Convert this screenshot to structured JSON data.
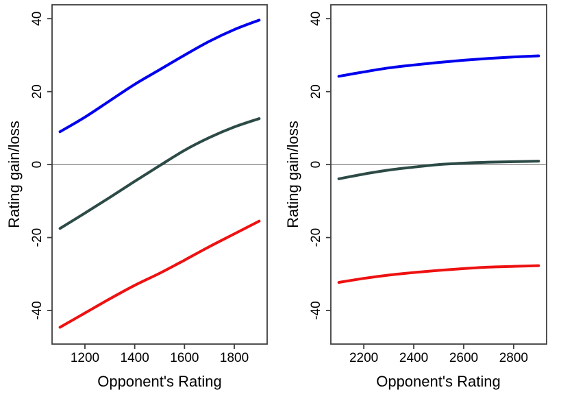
{
  "figure": {
    "background_color": "#ffffff",
    "box_color": "#3e3e3e",
    "zero_line_color": "#8f8f8f",
    "text_color": "#000000",
    "curve_width": 4
  },
  "chart_data": [
    {
      "type": "line",
      "panel": "left",
      "title": "",
      "xlabel": "Opponent's Rating",
      "ylabel": "Rating gain/loss",
      "xticks": [
        1200,
        1400,
        1600,
        1800
      ],
      "yticks": [
        -40,
        -20,
        0,
        20,
        40
      ],
      "xlim": [
        1068,
        1932
      ],
      "ylim": [
        -49.2,
        43.8
      ],
      "reference_line_y": 0,
      "grid": false,
      "legend": false,
      "x": [
        1100,
        1200,
        1300,
        1400,
        1500,
        1600,
        1700,
        1800,
        1900
      ],
      "series": [
        {
          "name": "blue-upper",
          "color": "#0000ee",
          "values": [
            9.0,
            13.0,
            17.5,
            22.0,
            26.0,
            30.0,
            33.8,
            37.0,
            39.6
          ]
        },
        {
          "name": "darkslate-middle",
          "color": "#2d4b46",
          "values": [
            -17.5,
            -13.3,
            -9.0,
            -4.6,
            -0.3,
            3.9,
            7.4,
            10.3,
            12.6
          ]
        },
        {
          "name": "red-lower",
          "color": "#ee1111",
          "values": [
            -44.6,
            -40.7,
            -36.8,
            -33.1,
            -29.8,
            -26.2,
            -22.5,
            -19.0,
            -15.5
          ]
        }
      ]
    },
    {
      "type": "line",
      "panel": "right",
      "title": "",
      "xlabel": "Opponent's Rating",
      "ylabel": "Rating gain/loss",
      "xticks": [
        2200,
        2400,
        2600,
        2800
      ],
      "yticks": [
        -40,
        -20,
        0,
        20,
        40
      ],
      "xlim": [
        2068,
        2932
      ],
      "ylim": [
        -49.2,
        43.8
      ],
      "reference_line_y": 0,
      "grid": false,
      "legend": false,
      "x": [
        2100,
        2200,
        2300,
        2400,
        2500,
        2600,
        2700,
        2800,
        2900
      ],
      "series": [
        {
          "name": "blue-upper",
          "color": "#0000ee",
          "values": [
            24.2,
            25.4,
            26.5,
            27.3,
            28.0,
            28.6,
            29.1,
            29.5,
            29.8
          ]
        },
        {
          "name": "darkslate-middle",
          "color": "#2d4b46",
          "values": [
            -3.9,
            -2.6,
            -1.5,
            -0.7,
            0.0,
            0.4,
            0.65,
            0.8,
            0.95
          ]
        },
        {
          "name": "red-lower",
          "color": "#ee1111",
          "values": [
            -32.3,
            -31.2,
            -30.3,
            -29.6,
            -29.0,
            -28.5,
            -28.1,
            -27.9,
            -27.7
          ]
        }
      ]
    }
  ]
}
